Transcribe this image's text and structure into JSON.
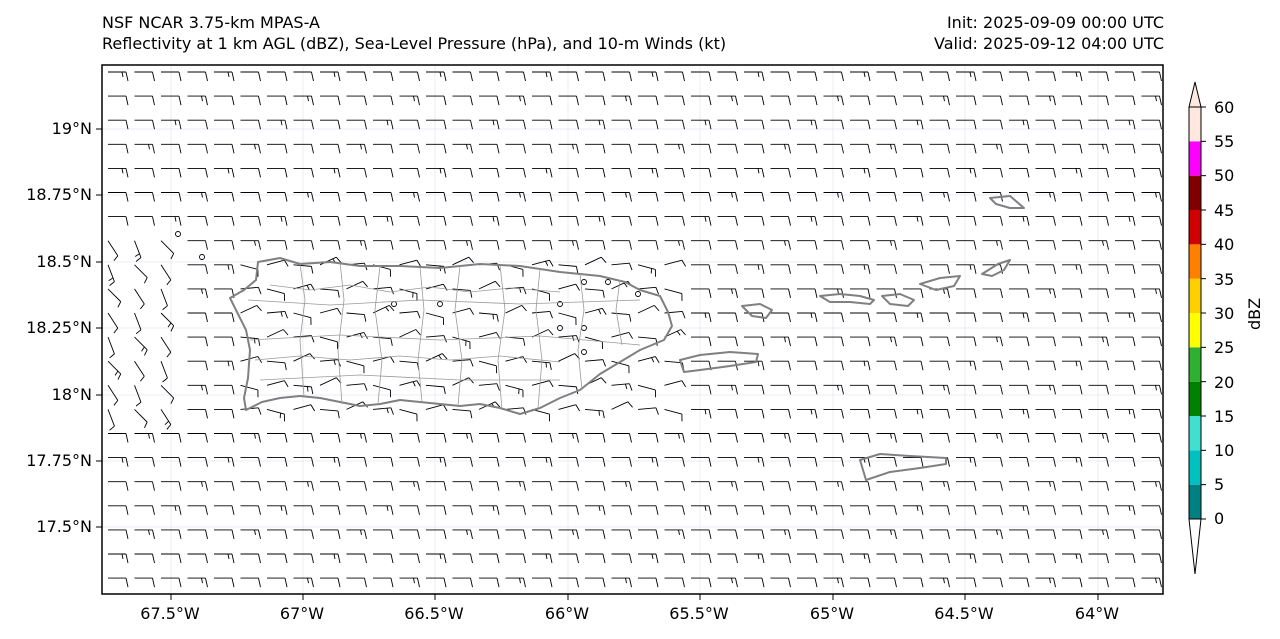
{
  "header": {
    "title_line1": "NSF NCAR 3.75-km MPAS-A",
    "title_line2": "Reflectivity at 1 km AGL (dBZ), Sea-Level Pressure (hPa), and 10-m Winds (kt)",
    "init": "Init: 2025-09-09 00:00 UTC",
    "valid": "Valid: 2025-09-12 04:00 UTC"
  },
  "map": {
    "lat_ticks": [
      "19°N",
      "18.75°N",
      "18.5°N",
      "18.25°N",
      "18°N",
      "17.75°N",
      "17.5°N"
    ],
    "lon_ticks": [
      "67.5°W",
      "67°W",
      "66.5°W",
      "66°W",
      "65.5°W",
      "65°W",
      "64.5°W",
      "64°W"
    ],
    "background": "#ffffff",
    "coastline_color": "#808080",
    "wind_barb_color": "#000000"
  },
  "colorbar": {
    "label": "dBZ",
    "ticks": [
      "0",
      "5",
      "10",
      "15",
      "20",
      "25",
      "30",
      "35",
      "40",
      "45",
      "50",
      "55",
      "60"
    ],
    "colors": [
      "#008080",
      "#00c0c0",
      "#40e0d0",
      "#008000",
      "#30b030",
      "#ffff00",
      "#ffd000",
      "#ff8000",
      "#d00000",
      "#800000",
      "#ff00ff",
      "#ffe8e0"
    ]
  }
}
